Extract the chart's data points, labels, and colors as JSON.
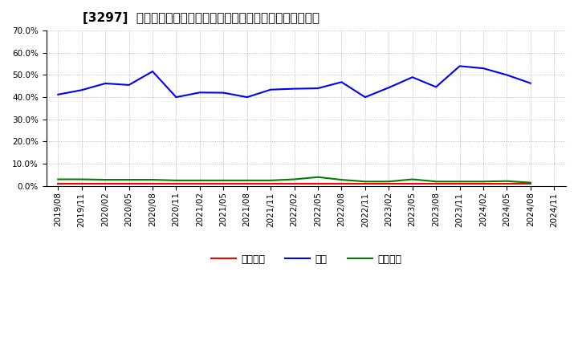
{
  "title": "[3297]  売上債権、在庫、買入債務の総資産に対する比率の推移",
  "x_labels": [
    "2019/08",
    "2019/11",
    "2020/02",
    "2020/05",
    "2020/08",
    "2020/11",
    "2021/02",
    "2021/05",
    "2021/08",
    "2021/11",
    "2022/02",
    "2022/05",
    "2022/08",
    "2022/11",
    "2023/02",
    "2023/05",
    "2023/08",
    "2023/11",
    "2024/02",
    "2024/05",
    "2024/08",
    "2024/11"
  ],
  "inventory": [
    0.412,
    0.432,
    0.462,
    0.455,
    0.516,
    0.4,
    0.421,
    0.42,
    0.4,
    0.434,
    0.438,
    0.44,
    0.468,
    0.4,
    0.443,
    0.49,
    0.446,
    0.54,
    0.53,
    0.5,
    0.463,
    null
  ],
  "receivables": [
    0.01,
    0.01,
    0.01,
    0.01,
    0.01,
    0.01,
    0.01,
    0.01,
    0.01,
    0.01,
    0.01,
    0.01,
    0.01,
    0.01,
    0.01,
    0.01,
    0.01,
    0.01,
    0.01,
    0.01,
    0.01,
    null
  ],
  "payables": [
    0.03,
    0.03,
    0.028,
    0.028,
    0.028,
    0.025,
    0.025,
    0.025,
    0.025,
    0.025,
    0.03,
    0.04,
    0.028,
    0.02,
    0.02,
    0.03,
    0.02,
    0.02,
    0.02,
    0.022,
    0.015,
    null
  ],
  "ylim": [
    0.0,
    0.7
  ],
  "yticks": [
    0.0,
    0.1,
    0.2,
    0.3,
    0.4,
    0.5,
    0.6,
    0.7
  ],
  "color_inventory": "#0000ff",
  "color_receivables": "#ff0000",
  "color_payables": "#008000",
  "legend_receivables": "売上債権",
  "legend_inventory": "在庫",
  "legend_payables": "買入債務",
  "background_color": "#ffffff",
  "title_fontsize": 11,
  "tick_fontsize": 7.5,
  "legend_fontsize": 9
}
